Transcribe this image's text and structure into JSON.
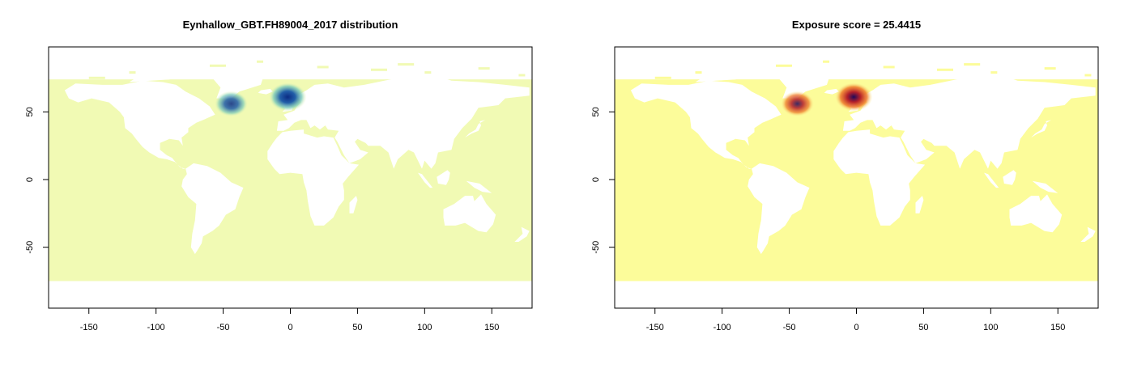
{
  "chart_data": [
    {
      "type": "heatmap",
      "title": "Eynhallow_GBT.FH89004_2017 distribution",
      "xlabel": "",
      "ylabel": "",
      "xlim": [
        -180,
        180
      ],
      "ylim": [
        -95,
        98
      ],
      "xticks": [
        -150,
        -100,
        -50,
        0,
        50,
        100,
        150
      ],
      "yticks": [
        -50,
        0,
        50
      ],
      "grid": false,
      "colors": {
        "ocean": "#f1fab4",
        "mid": "#41a6c4",
        "high": "#0c2c84"
      },
      "hotspots": [
        {
          "lon": -44,
          "lat": 56,
          "intensity": 0.7
        },
        {
          "lon": -2,
          "lat": 61,
          "intensity": 1.0
        }
      ]
    },
    {
      "type": "heatmap",
      "title": "Exposure score = 25.4415",
      "xlabel": "",
      "ylabel": "",
      "xlim": [
        -180,
        180
      ],
      "ylim": [
        -95,
        98
      ],
      "xticks": [
        -150,
        -100,
        -50,
        0,
        50,
        100,
        150
      ],
      "yticks": [
        -50,
        0,
        50
      ],
      "grid": false,
      "colors": {
        "ocean": "#fcfc9a",
        "mid": "#e8641e",
        "high": "#1e0a5a"
      },
      "hotspots": [
        {
          "lon": -44,
          "lat": 56,
          "intensity": 0.7
        },
        {
          "lon": -2,
          "lat": 61,
          "intensity": 1.0
        }
      ]
    }
  ]
}
